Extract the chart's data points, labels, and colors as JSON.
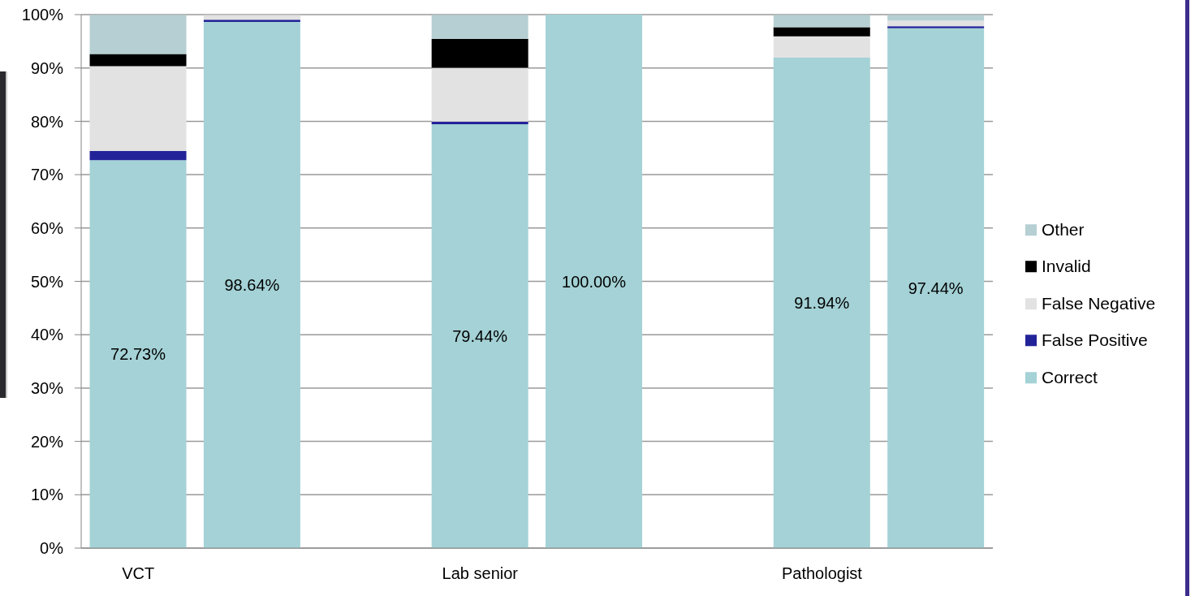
{
  "chart_data": {
    "type": "bar",
    "stacked": true,
    "categories": [
      "VCT",
      null,
      null,
      "Lab senior",
      null,
      null,
      "Pathologist",
      null
    ],
    "series": [
      {
        "name": "Correct",
        "color": "#a4d2d6",
        "values": [
          72.73,
          98.64,
          null,
          79.44,
          100.0,
          null,
          91.94,
          97.44
        ],
        "value_labels": [
          "72.73%",
          "98.64%",
          null,
          "79.44%",
          "100.00%",
          null,
          "91.94%",
          "97.44%"
        ]
      },
      {
        "name": "False Positive",
        "color": "#232399",
        "values": [
          1.7,
          0.4,
          null,
          0.5,
          0,
          null,
          0,
          0.4
        ]
      },
      {
        "name": "False Negative",
        "color": "#e2e2e2",
        "values": [
          15.9,
          0.9,
          null,
          10.1,
          0,
          null,
          4.0,
          1.0
        ]
      },
      {
        "name": "Invalid",
        "color": "#000000",
        "values": [
          2.3,
          0,
          null,
          5.4,
          0,
          null,
          1.7,
          0
        ]
      },
      {
        "name": "Other",
        "color": "#b6cfd3",
        "values": [
          7.3,
          0,
          null,
          4.5,
          0,
          null,
          2.3,
          1.1
        ]
      }
    ],
    "ylim": [
      0,
      100
    ],
    "yticks": [
      {
        "value": 0,
        "label": "0%"
      },
      {
        "value": 10,
        "label": "10%"
      },
      {
        "value": 20,
        "label": "20%"
      },
      {
        "value": 30,
        "label": "30%"
      },
      {
        "value": 40,
        "label": "40%"
      },
      {
        "value": 50,
        "label": "50%"
      },
      {
        "value": 60,
        "label": "60%"
      },
      {
        "value": 70,
        "label": "70%"
      },
      {
        "value": 80,
        "label": "80%"
      },
      {
        "value": 90,
        "label": "90%"
      },
      {
        "value": 100,
        "label": "100%"
      }
    ],
    "grid": "y",
    "legend": "right"
  }
}
